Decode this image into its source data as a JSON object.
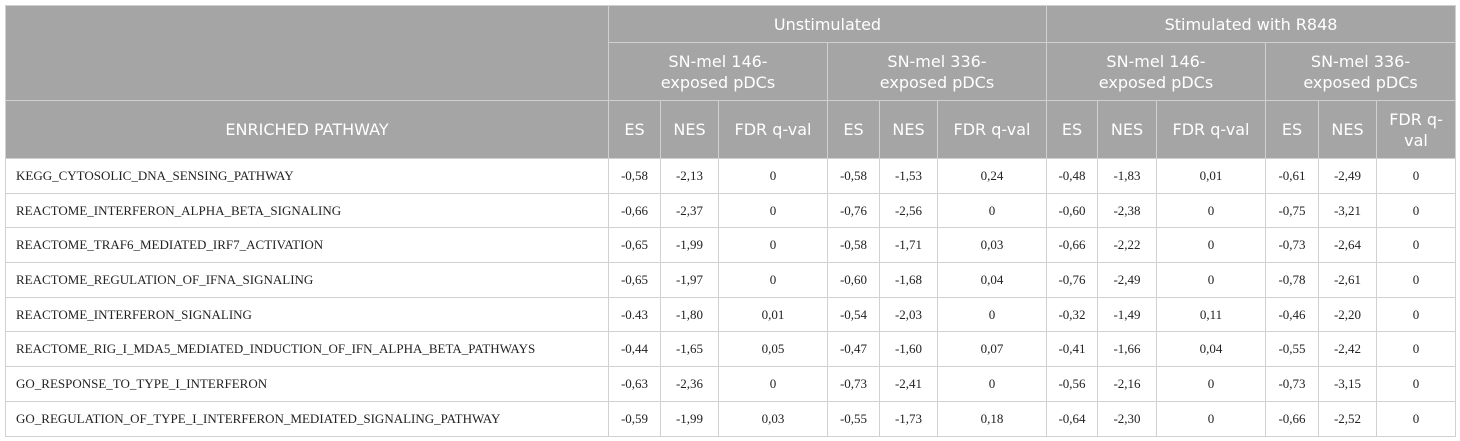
{
  "header": {
    "groups": [
      "Unstimulated",
      "Stimulated with R848"
    ],
    "subgroups": [
      "SN-mel 146-exposed pDCs",
      "SN-mel 336-exposed pDCs",
      "SN-mel 146-exposed pDCs",
      "SN-mel 336-exposed pDCs"
    ],
    "columns": [
      "ENRICHED PATHWAY",
      "ES",
      "NES",
      "FDR q-val",
      "ES",
      "NES",
      "FDR q-val",
      "ES",
      "NES",
      "FDR q-val",
      "ES",
      "NES",
      "FDR q-val"
    ]
  },
  "table": {
    "rows": [
      [
        "KEGG_CYTOSOLIC_DNA_SENSING_PATHWAY",
        "-0,58",
        "-2,13",
        "0",
        "-0,58",
        "-1,53",
        "0,24",
        "-0,48",
        "-1,83",
        "0,01",
        "-0,61",
        "-2,49",
        "0"
      ],
      [
        "REACTOME_INTERFERON_ALPHA_BETA_SIGNALING",
        "-0,66",
        "-2,37",
        "0",
        "-0,76",
        "-2,56",
        "0",
        "-0,60",
        "-2,38",
        "0",
        "-0,75",
        "-3,21",
        "0"
      ],
      [
        "REACTOME_TRAF6_MEDIATED_IRF7_ACTIVATION",
        "-0,65",
        "-1,99",
        "0",
        "-0,58",
        "-1,71",
        "0,03",
        "-0,66",
        "-2,22",
        "0",
        "-0,73",
        "-2,64",
        "0"
      ],
      [
        "REACTOME_REGULATION_OF_IFNA_SIGNALING",
        "-0,65",
        "-1,97",
        "0",
        "-0,60",
        "-1,68",
        "0,04",
        "-0,76",
        "-2,49",
        "0",
        "-0,78",
        "-2,61",
        "0"
      ],
      [
        "REACTOME_INTERFERON_SIGNALING",
        "-0.43",
        "-1,80",
        "0,01",
        "-0,54",
        "-2,03",
        "0",
        "-0,32",
        "-1,49",
        "0,11",
        "-0,46",
        "-2,20",
        "0"
      ],
      [
        "REACTOME_RIG_I_MDA5_MEDIATED_INDUCTION_OF_IFN_ALPHA_BETA_PATHWAYS",
        "-0,44",
        "-1,65",
        "0,05",
        "-0,47",
        "-1,60",
        "0,07",
        "-0,41",
        "-1,66",
        "0,04",
        "-0,55",
        "-2,42",
        "0"
      ],
      [
        "GO_RESPONSE_TO_TYPE_I_INTERFERON",
        "-0,63",
        "-2,36",
        "0",
        "-0,73",
        "-2,41",
        "0",
        "-0,56",
        "-2,16",
        "0",
        "-0,73",
        "-3,15",
        "0"
      ],
      [
        "GO_REGULATION_OF_TYPE_I_INTERFERON_MEDIATED_SIGNALING_PATHWAY",
        "-0,59",
        "-1,99",
        "0,03",
        "-0,55",
        "-1,73",
        "0,18",
        "-0,64",
        "-2,30",
        "0",
        "-0,66",
        "-2,52",
        "0"
      ]
    ]
  }
}
